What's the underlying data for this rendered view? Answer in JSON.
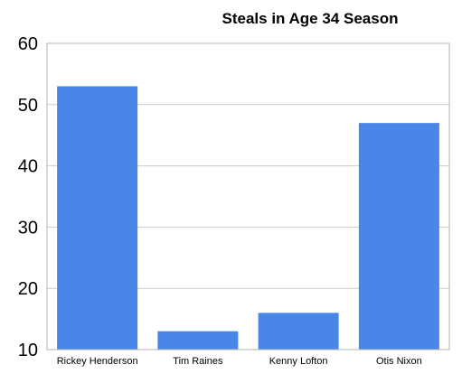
{
  "chart_data": {
    "type": "bar",
    "title": "Steals in Age 34 Season",
    "xlabel": "",
    "ylabel": "",
    "categories": [
      "Rickey Henderson",
      "Tim Raines",
      "Kenny Lofton",
      "Otis Nixon"
    ],
    "values": [
      53,
      13,
      16,
      47
    ],
    "ylim": [
      10,
      60
    ],
    "yticks": [
      "10",
      "20",
      "30",
      "40",
      "50",
      "60"
    ],
    "grid": true,
    "bar_color": "#4a86e8",
    "legend": "none"
  }
}
